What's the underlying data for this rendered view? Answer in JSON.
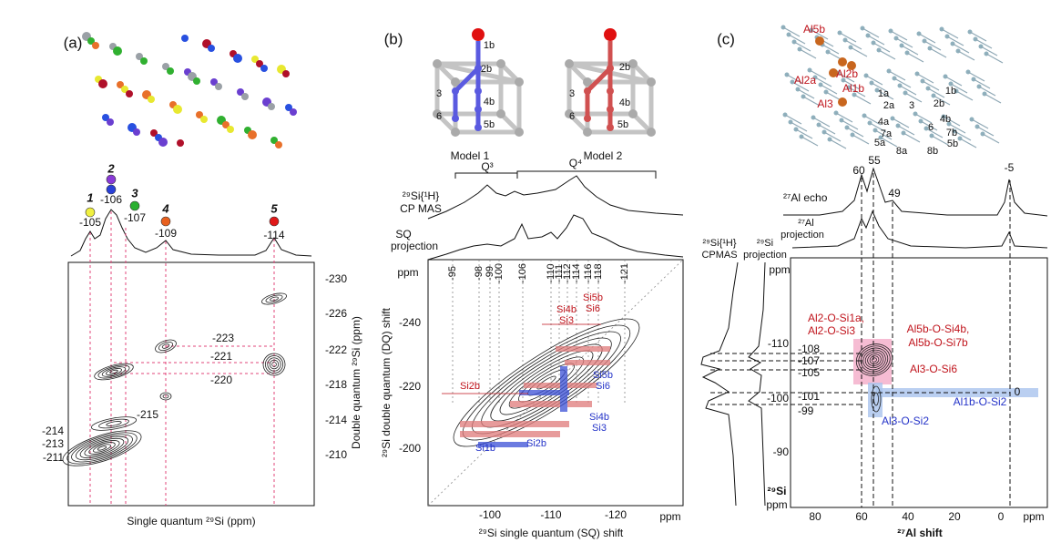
{
  "panel_a": {
    "label": "(a)",
    "peaks": [
      {
        "number": 1,
        "shift": -105
      },
      {
        "number": 2,
        "shift": -106
      },
      {
        "number": 3,
        "shift": -107
      },
      {
        "number": 4,
        "shift": -109
      },
      {
        "number": 5,
        "shift": -114
      }
    ],
    "dq_labels": [
      -223,
      -221,
      -220,
      -215,
      -214,
      -213,
      -211
    ],
    "y_ticks": [
      -230,
      -226,
      -222,
      -218,
      -214,
      -210
    ],
    "y_title": "Double quantum ²⁹Si (ppm)",
    "x_title": "Single quantum ²⁹Si (ppm)"
  },
  "panel_b": {
    "label": "(b)",
    "models": [
      {
        "name": "Model 1",
        "atoms": [
          "1b",
          "2b",
          "3",
          "4b",
          "6",
          "5b"
        ]
      },
      {
        "name": "Model 2",
        "atoms": [
          "2b",
          "3",
          "4b",
          "6",
          "5b"
        ]
      }
    ],
    "q3": "Q³",
    "q4": "Q⁴",
    "cp_label": [
      "²⁹Si{¹H}",
      "CP MAS"
    ],
    "sq_label": [
      "SQ",
      "projection"
    ],
    "top_ticks": [
      -95,
      -98,
      -99,
      -100,
      -106,
      -110,
      -111,
      -112,
      -114,
      -116,
      -118,
      -121
    ],
    "y_unit": "ppm",
    "y_ticks": [
      -240,
      -220,
      -200
    ],
    "x_ticks": [
      -100,
      -110,
      -120
    ],
    "x_unit": "ppm",
    "x_title": "²⁹Si single quantum (SQ) shift",
    "y_title": "²⁹Si double quantum (DQ) shift",
    "red_labels": [
      "Si4b",
      "Si3",
      "Si5b",
      "Si6",
      "Si2b"
    ],
    "blue_labels": [
      "Si5b",
      "Si6",
      "Si4b",
      "Si3",
      "Si1b",
      "Si2b"
    ]
  },
  "panel_c": {
    "label": "(c)",
    "al_sites": [
      "Al5b",
      "Al2b",
      "Al2a",
      "Al1b",
      "Al3"
    ],
    "si_sites": [
      "1a",
      "2a",
      "1b",
      "2b",
      "3",
      "4a",
      "4b",
      "7a",
      "6",
      "7b",
      "5a",
      "8a",
      "8b",
      "5b"
    ],
    "al_peaks": [
      60,
      55,
      49,
      -5
    ],
    "echo_label": "²⁷Al echo",
    "proj_label": [
      "²⁷Al",
      "projection"
    ],
    "cpmas_label": [
      "²⁹Si{¹H}",
      "CPMAS"
    ],
    "si_proj_label": [
      "²⁹Si",
      "projection"
    ],
    "y_unit": "ppm",
    "y_ticks": [
      -110,
      -100,
      -90
    ],
    "y_nucleus": "²⁹Si",
    "y_unit2": "ppm",
    "x_ticks": [
      80,
      60,
      40,
      20,
      0
    ],
    "x_unit": "ppm",
    "x_title": "²⁷Al shift",
    "red_annotations": [
      "Al2-O-Si1a,",
      "Al2-O-Si3",
      "Al5b-O-Si4b,",
      "Al5b-O-Si7b",
      "Al3-O-Si6"
    ],
    "blue_annotations": [
      "Al1b-O-Si2",
      "Al3-O-Si2"
    ],
    "blue_shift": 0,
    "si_shifts": [
      -108,
      -107,
      -105,
      -101,
      -99
    ]
  }
}
